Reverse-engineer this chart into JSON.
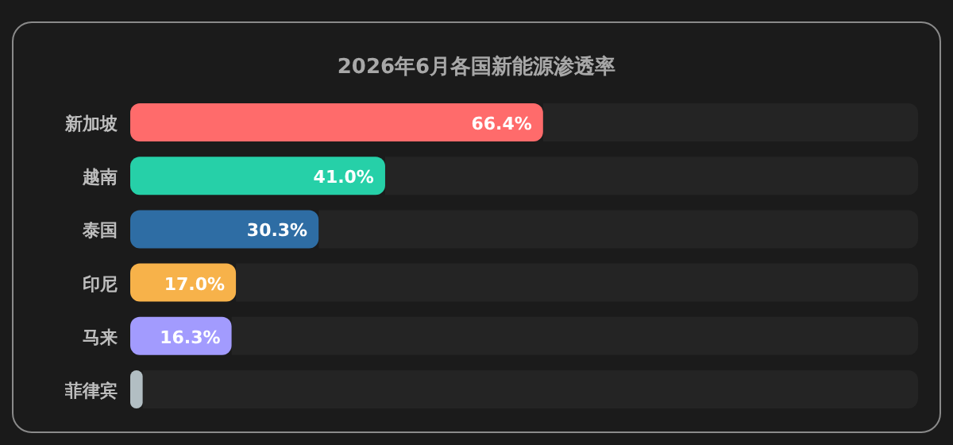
{
  "chart_data": {
    "type": "bar",
    "orientation": "horizontal",
    "title": "2026年6月各国新能源渗透率",
    "categories": [
      "新加坡",
      "越南",
      "泰国",
      "印尼",
      "马来",
      "菲律宾"
    ],
    "values": [
      66.4,
      41.0,
      30.3,
      17.0,
      16.3,
      2.0
    ],
    "colors": [
      "#ff6b6b",
      "#26d0a8",
      "#2e6da4",
      "#f7b24a",
      "#a29bfe",
      "#b2bec3"
    ],
    "value_labels": [
      "66.4%",
      "41.0%",
      "30.3%",
      "17.0%",
      "16.3%",
      null
    ]
  }
}
